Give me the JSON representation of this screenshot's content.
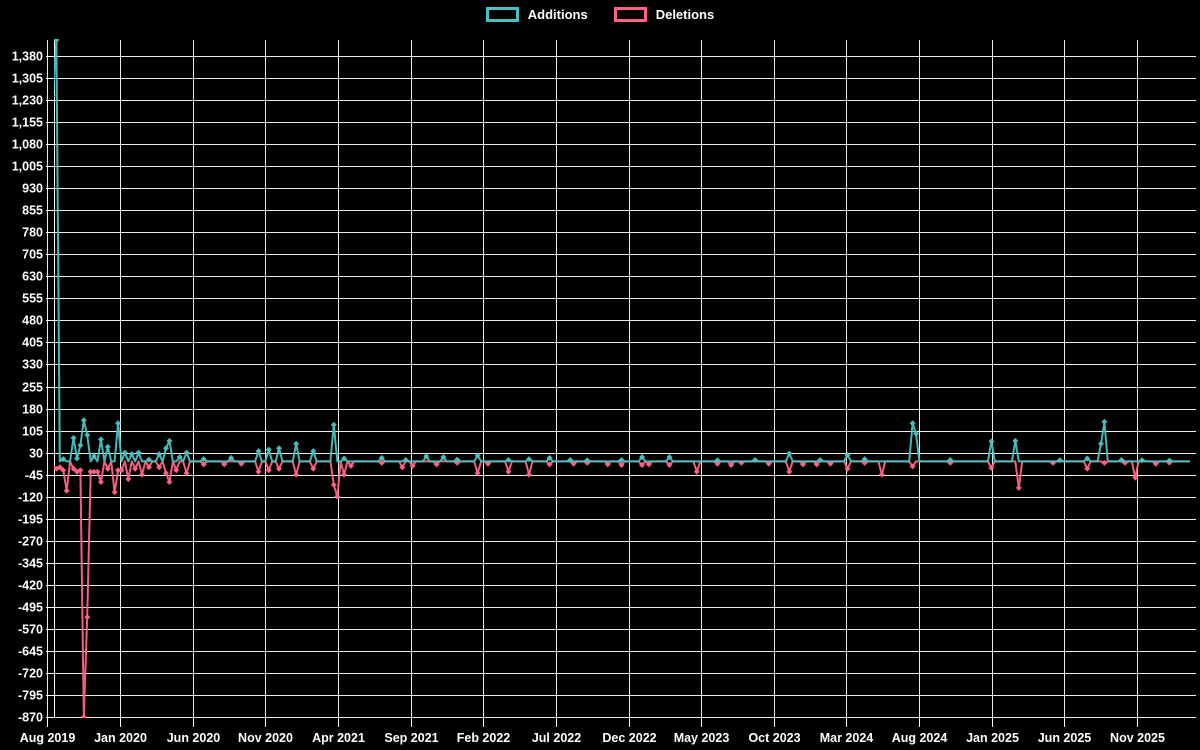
{
  "legend": {
    "items": [
      {
        "label": "Additions",
        "color": "#4bc0c0"
      },
      {
        "label": "Deletions",
        "color": "#ff6384"
      }
    ]
  },
  "chart_data": {
    "type": "line",
    "title": "",
    "background": "#000000",
    "grid": true,
    "grid_color": "#ffffff",
    "text_color": "#ffffff",
    "legend_position": "top",
    "point_style": "diamond",
    "x_axis": {
      "tick_labels": [
        "Aug 2019",
        "Jan 2020",
        "Jun 2020",
        "Nov 2020",
        "Apr 2021",
        "Sep 2021",
        "Feb 2022",
        "Jul 2022",
        "Dec 2022",
        "May 2023",
        "Oct 2023",
        "Mar 2024",
        "Aug 2024",
        "Jan 2025",
        "Jun 2025",
        "Nov 2025"
      ],
      "unit": "week",
      "weeks_total": 333
    },
    "y_axis": {
      "min": -870,
      "max": 1380,
      "step": 75,
      "tick_values": [
        1380,
        1305,
        1230,
        1155,
        1080,
        1005,
        930,
        855,
        780,
        705,
        630,
        555,
        480,
        405,
        330,
        255,
        180,
        105,
        30,
        -45,
        -120,
        -195,
        -270,
        -345,
        -420,
        -495,
        -570,
        -645,
        -720,
        -795,
        -870
      ],
      "tick_labels": [
        "1,380",
        "1,305",
        "1,230",
        "1,155",
        "1,080",
        "1,005",
        "930",
        "855",
        "780",
        "705",
        "630",
        "555",
        "480",
        "405",
        "330",
        "255",
        "180",
        "105",
        "30",
        "-45",
        "-120",
        "-195",
        "-270",
        "-345",
        "-420",
        "-495",
        "-570",
        "-645",
        "-720",
        "-795",
        "-870"
      ]
    },
    "series": [
      {
        "name": "Additions",
        "color": "#4bc0c0",
        "default_value": 0,
        "points": [
          [
            0,
            1245
          ],
          [
            1,
            1435
          ],
          [
            3,
            8
          ],
          [
            6,
            80
          ],
          [
            7,
            10
          ],
          [
            8,
            55
          ],
          [
            9,
            140
          ],
          [
            10,
            90
          ],
          [
            12,
            18
          ],
          [
            14,
            75
          ],
          [
            16,
            50
          ],
          [
            19,
            130
          ],
          [
            21,
            30
          ],
          [
            23,
            25
          ],
          [
            25,
            30
          ],
          [
            28,
            6
          ],
          [
            31,
            25
          ],
          [
            33,
            45
          ],
          [
            34,
            70
          ],
          [
            37,
            15
          ],
          [
            39,
            30
          ],
          [
            44,
            8
          ],
          [
            52,
            12
          ],
          [
            60,
            35
          ],
          [
            63,
            40
          ],
          [
            66,
            45
          ],
          [
            71,
            60
          ],
          [
            76,
            35
          ],
          [
            82,
            125
          ],
          [
            85,
            10
          ],
          [
            96,
            12
          ],
          [
            103,
            5
          ],
          [
            109,
            18
          ],
          [
            114,
            15
          ],
          [
            118,
            6
          ],
          [
            124,
            20
          ],
          [
            133,
            5
          ],
          [
            139,
            8
          ],
          [
            145,
            12
          ],
          [
            151,
            5
          ],
          [
            156,
            4
          ],
          [
            166,
            5
          ],
          [
            172,
            15
          ],
          [
            180,
            15
          ],
          [
            194,
            4
          ],
          [
            205,
            5
          ],
          [
            215,
            27
          ],
          [
            224,
            5
          ],
          [
            232,
            22
          ],
          [
            237,
            8
          ],
          [
            251,
            130
          ],
          [
            252,
            95
          ],
          [
            262,
            5
          ],
          [
            274,
            68
          ],
          [
            281,
            70
          ],
          [
            294,
            4
          ],
          [
            302,
            10
          ],
          [
            306,
            60
          ],
          [
            307,
            135
          ],
          [
            312,
            5
          ],
          [
            318,
            4
          ],
          [
            326,
            3
          ]
        ]
      },
      {
        "name": "Deletions",
        "color": "#ff6384",
        "default_value": 0,
        "points": [
          [
            0,
            -20
          ],
          [
            1,
            -25
          ],
          [
            2,
            -20
          ],
          [
            3,
            -30
          ],
          [
            4,
            -100
          ],
          [
            6,
            -25
          ],
          [
            7,
            -35
          ],
          [
            8,
            -30
          ],
          [
            9,
            -870
          ],
          [
            10,
            -530
          ],
          [
            11,
            -35
          ],
          [
            12,
            -35
          ],
          [
            13,
            -35
          ],
          [
            14,
            -70
          ],
          [
            16,
            -25
          ],
          [
            18,
            -105
          ],
          [
            19,
            -30
          ],
          [
            20,
            -30
          ],
          [
            22,
            -60
          ],
          [
            24,
            -25
          ],
          [
            26,
            -45
          ],
          [
            28,
            -20
          ],
          [
            31,
            -20
          ],
          [
            33,
            -40
          ],
          [
            34,
            -70
          ],
          [
            36,
            -30
          ],
          [
            39,
            -40
          ],
          [
            44,
            -10
          ],
          [
            50,
            -10
          ],
          [
            55,
            -8
          ],
          [
            60,
            -35
          ],
          [
            63,
            -30
          ],
          [
            66,
            -25
          ],
          [
            71,
            -45
          ],
          [
            76,
            -25
          ],
          [
            82,
            -80
          ],
          [
            83,
            -120
          ],
          [
            85,
            -45
          ],
          [
            87,
            -15
          ],
          [
            96,
            -5
          ],
          [
            102,
            -20
          ],
          [
            105,
            -15
          ],
          [
            112,
            -10
          ],
          [
            118,
            -5
          ],
          [
            124,
            -40
          ],
          [
            127,
            -8
          ],
          [
            133,
            -35
          ],
          [
            139,
            -45
          ],
          [
            145,
            -10
          ],
          [
            152,
            -8
          ],
          [
            156,
            -5
          ],
          [
            162,
            -10
          ],
          [
            166,
            -12
          ],
          [
            172,
            -12
          ],
          [
            174,
            -10
          ],
          [
            180,
            -12
          ],
          [
            188,
            -35
          ],
          [
            194,
            -8
          ],
          [
            198,
            -12
          ],
          [
            201,
            -5
          ],
          [
            209,
            -8
          ],
          [
            215,
            -35
          ],
          [
            219,
            -10
          ],
          [
            223,
            -10
          ],
          [
            227,
            -8
          ],
          [
            232,
            -25
          ],
          [
            237,
            -5
          ],
          [
            242,
            -45
          ],
          [
            251,
            -17
          ],
          [
            262,
            -5
          ],
          [
            274,
            -22
          ],
          [
            282,
            -90
          ],
          [
            292,
            -5
          ],
          [
            302,
            -25
          ],
          [
            307,
            -5
          ],
          [
            313,
            -5
          ],
          [
            316,
            -55
          ],
          [
            322,
            -8
          ],
          [
            326,
            -4
          ]
        ]
      }
    ]
  }
}
